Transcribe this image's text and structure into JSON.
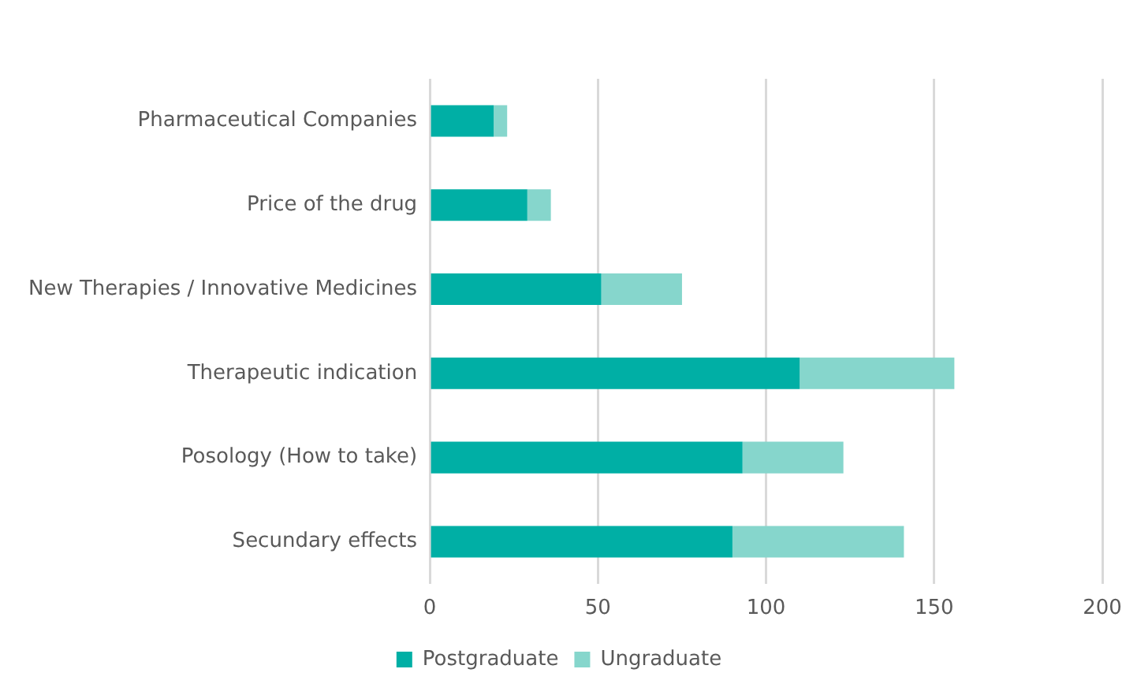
{
  "chart_data": {
    "type": "bar",
    "orientation": "horizontal",
    "stacked": true,
    "categories": [
      "Pharmaceutical Companies",
      "Price of the drug",
      "New Therapies / Innovative Medicines",
      "Therapeutic indication",
      "Posology (How to take)",
      "Secundary effects"
    ],
    "series": [
      {
        "name": "Postgraduate",
        "color": "#00afa5",
        "values": [
          19,
          29,
          51,
          110,
          93,
          90
        ]
      },
      {
        "name": "Ungraduate",
        "color": "#86d6cc",
        "values": [
          4,
          7,
          24,
          46,
          30,
          51
        ]
      }
    ],
    "xlim": [
      0,
      200
    ],
    "xticks": [
      0,
      50,
      100,
      150,
      200
    ],
    "grid": "x",
    "legend": "bottom"
  }
}
